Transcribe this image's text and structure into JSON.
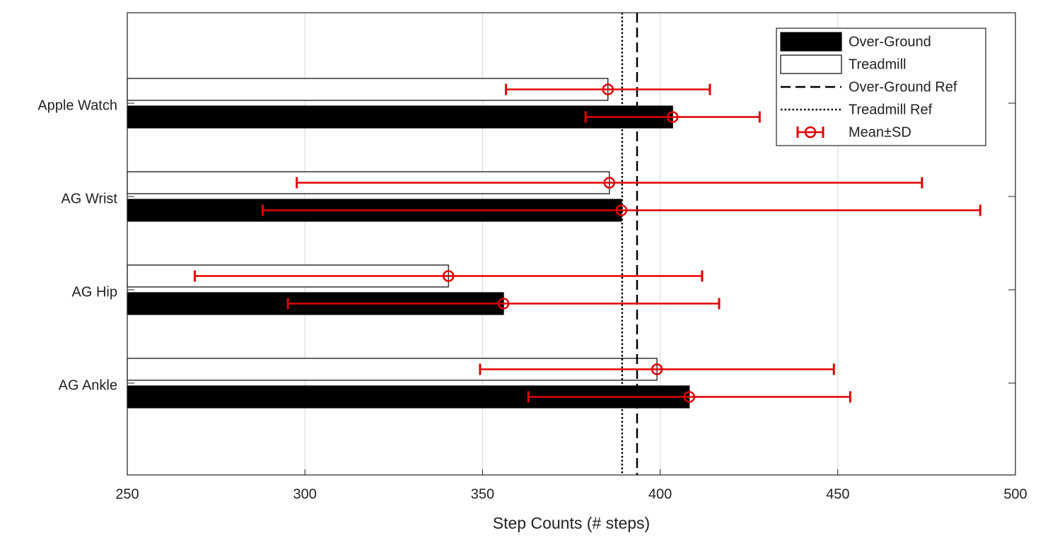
{
  "chart_data": {
    "type": "bar",
    "orientation": "horizontal",
    "xlabel": "Step Counts (# steps)",
    "categories": [
      "Apple Watch",
      "AG Wrist",
      "AG Hip",
      "AG Ankle"
    ],
    "series": [
      {
        "name": "Treadmill",
        "color": "#ffffff",
        "values": [
          385.3,
          385.7,
          340.4,
          399.1
        ],
        "errors": [
          28.7,
          88,
          71.4,
          49.8
        ]
      },
      {
        "name": "Over-Ground",
        "color": "#000000",
        "values": [
          403.5,
          389.1,
          355.9,
          408.2
        ],
        "errors": [
          24.5,
          101,
          60.7,
          45.3
        ]
      }
    ],
    "error_label": "Mean±SD",
    "error_color": "#e00000",
    "reference_lines": [
      {
        "name": "Over-Ground Ref",
        "value": 393.5,
        "style": "dashed"
      },
      {
        "name": "Treadmill Ref",
        "value": 389.3,
        "style": "dotted"
      }
    ],
    "xlim": [
      250,
      500
    ],
    "xticks": [
      250,
      300,
      350,
      400,
      450,
      500
    ],
    "grid": true,
    "legend": "top-right"
  }
}
